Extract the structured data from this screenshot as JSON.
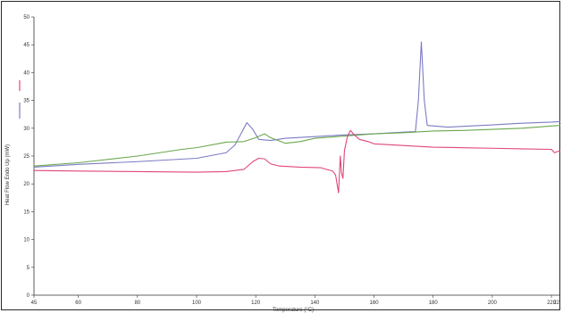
{
  "chart_data": {
    "type": "line",
    "xlabel": "Temperature (°C)",
    "ylabel": "Heat Flow Endo Up (mW)",
    "xlim": [
      45,
      223
    ],
    "ylim": [
      0,
      50
    ],
    "x_ticks": [
      45,
      60,
      80,
      100,
      120,
      140,
      160,
      180,
      200,
      220
    ],
    "x_tick_labels": [
      "45",
      "60",
      "80",
      "100",
      "120",
      "140",
      "160",
      "180",
      "200",
      "220"
    ],
    "x_edge_label": "22",
    "y_ticks": [
      0,
      5,
      10,
      15,
      20,
      25,
      30,
      35,
      40,
      45,
      50
    ],
    "y_tick_labels": [
      "0",
      "5",
      "10",
      "15",
      "20",
      "25",
      "30",
      "35",
      "40",
      "45",
      "50"
    ],
    "grid": false,
    "legend": "left-vertical",
    "series": [
      {
        "color": "#7b7bc4",
        "points": [
          [
            45,
            23.0
          ],
          [
            60,
            23.5
          ],
          [
            80,
            24.0
          ],
          [
            100,
            24.6
          ],
          [
            110,
            25.6
          ],
          [
            113,
            27.0
          ],
          [
            115,
            29.0
          ],
          [
            117,
            31.0
          ],
          [
            119,
            29.8
          ],
          [
            121,
            28.0
          ],
          [
            125,
            27.8
          ],
          [
            130,
            28.2
          ],
          [
            140,
            28.5
          ],
          [
            150,
            28.8
          ],
          [
            160,
            29.0
          ],
          [
            170,
            29.3
          ],
          [
            174,
            29.4
          ],
          [
            175,
            35
          ],
          [
            176,
            45.5
          ],
          [
            177,
            35
          ],
          [
            178,
            30.5
          ],
          [
            185,
            30.2
          ],
          [
            200,
            30.6
          ],
          [
            210,
            30.9
          ],
          [
            220,
            31.1
          ],
          [
            223,
            31.2
          ]
        ]
      },
      {
        "color": "#6aa84f",
        "points": [
          [
            45,
            23.2
          ],
          [
            60,
            23.8
          ],
          [
            80,
            25.0
          ],
          [
            95,
            26.2
          ],
          [
            100,
            26.5
          ],
          [
            110,
            27.5
          ],
          [
            116,
            27.6
          ],
          [
            120,
            28.3
          ],
          [
            123,
            29.0
          ],
          [
            125,
            28.3
          ],
          [
            130,
            27.3
          ],
          [
            135,
            27.6
          ],
          [
            140,
            28.2
          ],
          [
            150,
            28.6
          ],
          [
            160,
            29.0
          ],
          [
            170,
            29.2
          ],
          [
            180,
            29.5
          ],
          [
            190,
            29.6
          ],
          [
            200,
            29.8
          ],
          [
            210,
            30.0
          ],
          [
            220,
            30.4
          ],
          [
            223,
            30.5
          ]
        ]
      },
      {
        "color": "#e0457b",
        "points": [
          [
            45,
            22.4
          ],
          [
            60,
            22.3
          ],
          [
            80,
            22.2
          ],
          [
            100,
            22.1
          ],
          [
            110,
            22.2
          ],
          [
            116,
            22.6
          ],
          [
            119,
            24.0
          ],
          [
            121,
            24.6
          ],
          [
            123,
            24.5
          ],
          [
            125,
            23.6
          ],
          [
            128,
            23.2
          ],
          [
            135,
            23.0
          ],
          [
            142,
            22.9
          ],
          [
            146,
            22.3
          ],
          [
            147,
            21.6
          ],
          [
            148,
            18.4
          ],
          [
            148.6,
            25.0
          ],
          [
            149,
            22.0
          ],
          [
            149.5,
            21.0
          ],
          [
            150,
            26.0
          ],
          [
            151,
            28.5
          ],
          [
            152,
            29.6
          ],
          [
            153,
            29.0
          ],
          [
            155,
            28.0
          ],
          [
            158,
            27.6
          ],
          [
            160,
            27.2
          ],
          [
            170,
            26.9
          ],
          [
            180,
            26.6
          ],
          [
            190,
            26.5
          ],
          [
            200,
            26.4
          ],
          [
            210,
            26.3
          ],
          [
            220,
            26.2
          ],
          [
            221,
            25.6
          ],
          [
            223,
            26.0
          ]
        ]
      }
    ],
    "legend_colors": [
      "#e0457b",
      "#7b7bc4"
    ]
  }
}
